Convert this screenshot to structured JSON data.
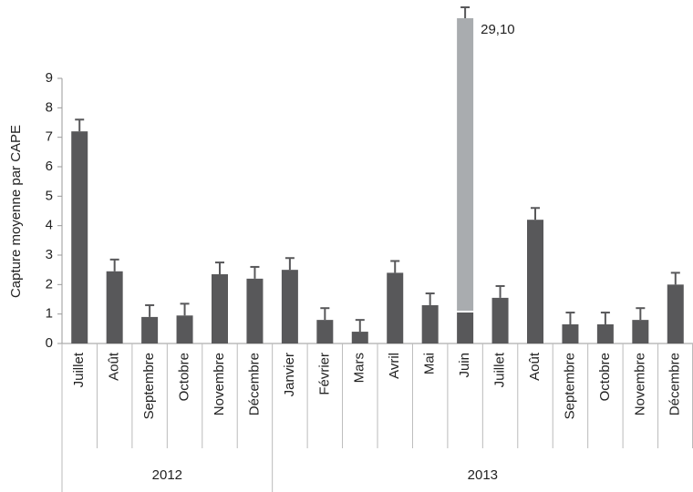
{
  "chart_data": {
    "type": "bar",
    "y_label": "Capture moyenne par CAPE",
    "categories": [
      "Juillet",
      "Août",
      "Septembre",
      "Octobre",
      "Novembre",
      "Décembre",
      "Janvier",
      "Février",
      "Mars",
      "Avril",
      "Mai",
      "Juin",
      "Juillet",
      "Août",
      "Septembre",
      "Octobre",
      "Novembre",
      "Décembre"
    ],
    "category_groups": [
      {
        "label": "2012",
        "size": 6
      },
      {
        "label": "2013",
        "size": 12
      }
    ],
    "values": [
      7.2,
      2.45,
      0.9,
      0.95,
      2.35,
      2.2,
      2.5,
      0.8,
      0.4,
      2.4,
      1.3,
      29.1,
      1.55,
      4.2,
      0.65,
      0.65,
      0.8,
      2.0
    ],
    "value_labels": [
      null,
      null,
      null,
      null,
      null,
      null,
      null,
      null,
      null,
      null,
      null,
      "29,10",
      null,
      null,
      null,
      null,
      null,
      null
    ],
    "errors": [
      0.4,
      0.4,
      0.4,
      0.4,
      0.4,
      0.4,
      0.4,
      0.4,
      0.4,
      0.4,
      0.4,
      0.4,
      0.4,
      0.4,
      0.4,
      0.4,
      0.4,
      0.4
    ],
    "color": "#58585a",
    "break_color": "#a9acaf",
    "ylim": [
      0,
      9
    ],
    "yticks": [
      0,
      1,
      2,
      3,
      4,
      5,
      6,
      7,
      8,
      9
    ],
    "grid": false
  }
}
